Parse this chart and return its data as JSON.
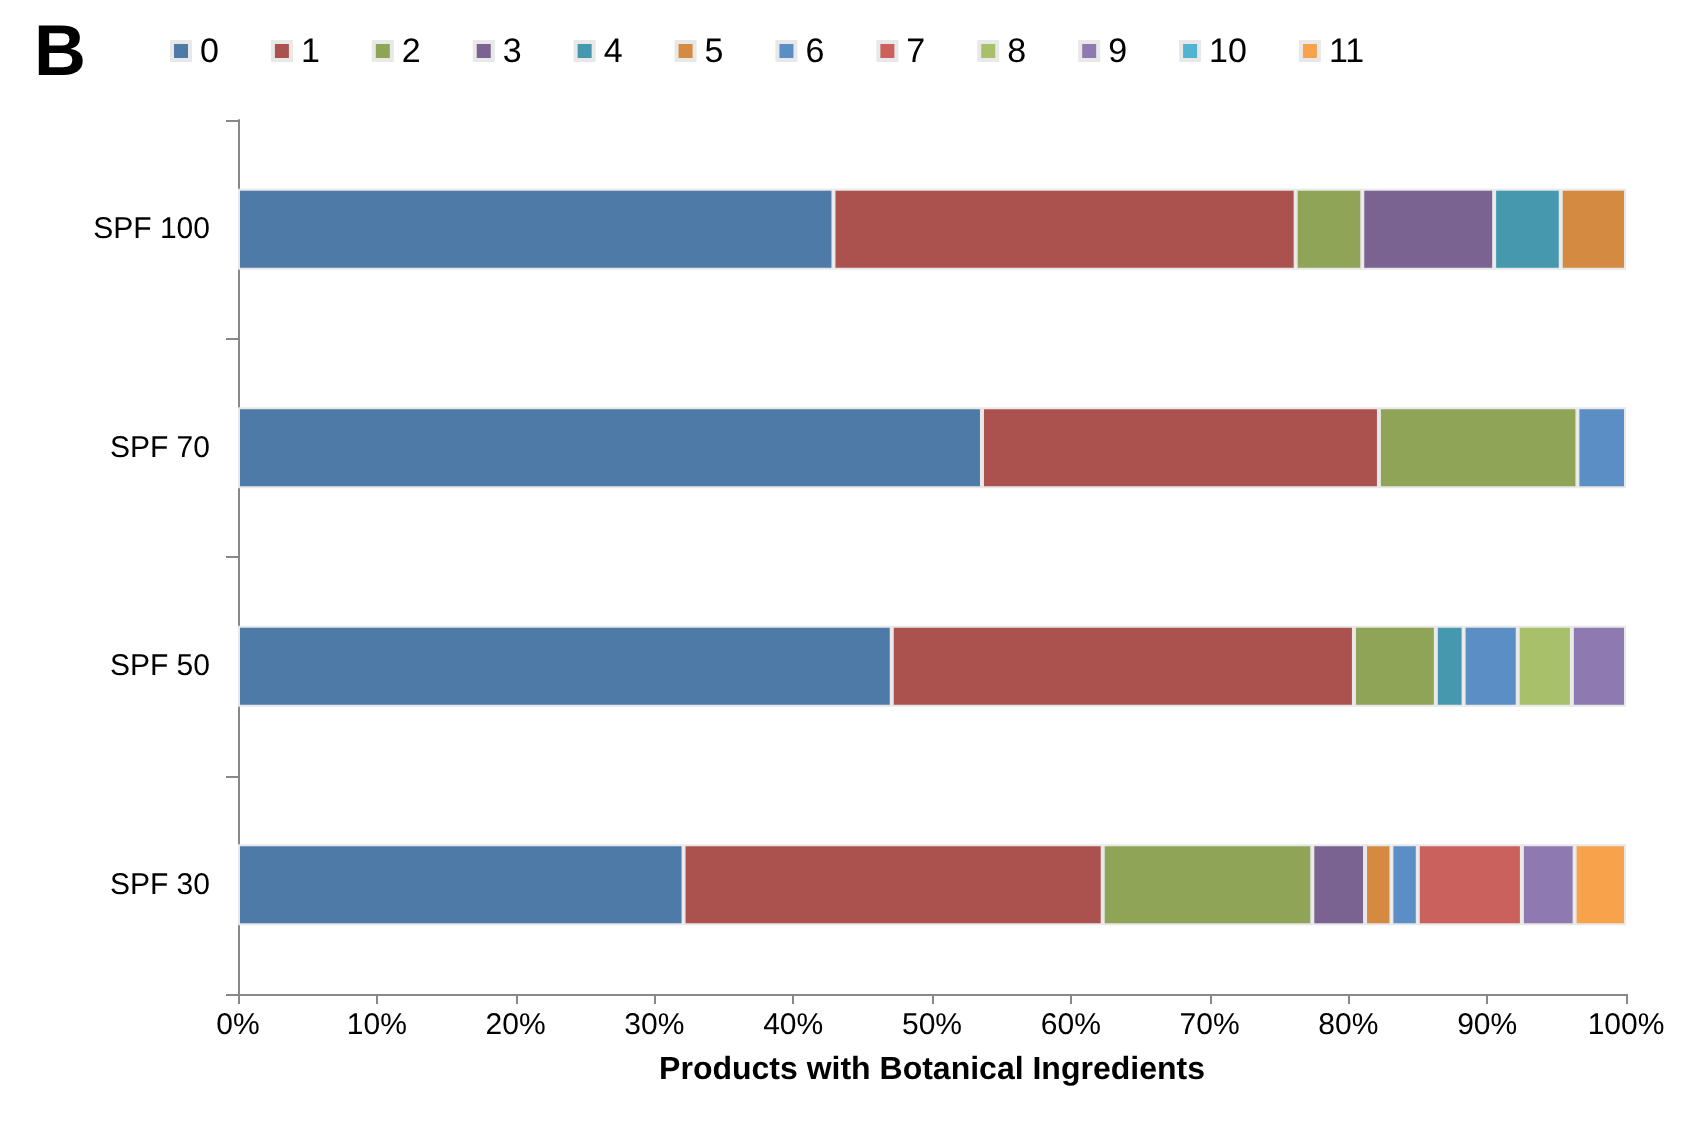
{
  "chart_data": {
    "type": "bar",
    "title": "B",
    "xlabel": "Products with Botanical Ingredients",
    "orientation": "horizontal",
    "stacked": true,
    "legend": "top",
    "grid": false,
    "categories": [
      "SPF 100",
      "SPF 70",
      "SPF 50",
      "SPF 30"
    ],
    "xlim": [
      0,
      100
    ],
    "xticks": [
      {
        "value": 0,
        "label": "0%"
      },
      {
        "value": 10,
        "label": "10%"
      },
      {
        "value": 20,
        "label": "20%"
      },
      {
        "value": 30,
        "label": "30%"
      },
      {
        "value": 40,
        "label": "40%"
      },
      {
        "value": 50,
        "label": "50%"
      },
      {
        "value": 60,
        "label": "60%"
      },
      {
        "value": 70,
        "label": "70%"
      },
      {
        "value": 80,
        "label": "80%"
      },
      {
        "value": 90,
        "label": "90%"
      },
      {
        "value": 100,
        "label": "100%"
      }
    ],
    "series": [
      {
        "name": "0",
        "color": "#4e7aa8",
        "values": [
          42.9,
          53.6,
          47.1,
          32.1
        ]
      },
      {
        "name": "1",
        "color": "#ac524e",
        "values": [
          33.3,
          28.6,
          33.3,
          30.2
        ]
      },
      {
        "name": "2",
        "color": "#8fa457",
        "values": [
          4.8,
          14.3,
          5.9,
          15.1
        ]
      },
      {
        "name": "3",
        "color": "#7a6291",
        "values": [
          9.5,
          null,
          null,
          3.8
        ]
      },
      {
        "name": "4",
        "color": "#4598ae",
        "values": [
          4.8,
          null,
          2.0,
          null
        ]
      },
      {
        "name": "5",
        "color": "#d48a40",
        "values": [
          4.7,
          null,
          null,
          1.9
        ]
      },
      {
        "name": "6",
        "color": "#5b8ec4",
        "values": [
          null,
          3.5,
          3.9,
          1.9
        ]
      },
      {
        "name": "7",
        "color": "#cb615c",
        "values": [
          null,
          null,
          null,
          7.5
        ]
      },
      {
        "name": "8",
        "color": "#a8c06a",
        "values": [
          null,
          null,
          3.9,
          null
        ]
      },
      {
        "name": "9",
        "color": "#8e7ab0",
        "values": [
          null,
          null,
          3.9,
          3.8
        ]
      },
      {
        "name": "10",
        "color": "#53b3d3",
        "values": [
          null,
          null,
          null,
          null
        ]
      },
      {
        "name": "11",
        "color": "#f8a24c",
        "values": [
          null,
          null,
          null,
          3.7
        ]
      }
    ]
  }
}
